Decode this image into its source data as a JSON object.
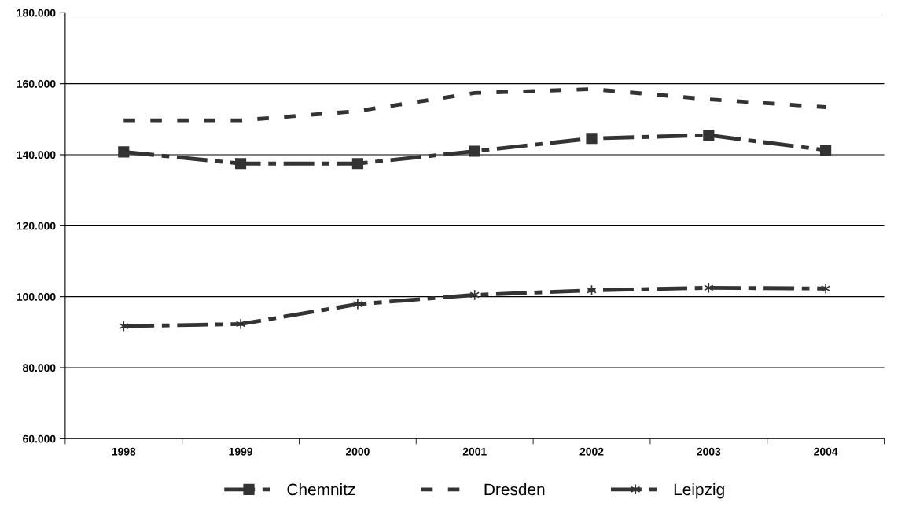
{
  "chart_data": {
    "type": "line",
    "categories": [
      "1998",
      "1999",
      "2000",
      "2001",
      "2002",
      "2003",
      "2004"
    ],
    "series": [
      {
        "name": "Chemnitz",
        "color": "#333333",
        "marker": "square",
        "line_style": "dashed",
        "values": [
          140800,
          137500,
          137500,
          141000,
          144600,
          145500,
          141300
        ]
      },
      {
        "name": "Dresden",
        "color": "#333333",
        "marker": "none",
        "line_style": "dotted",
        "values": [
          149700,
          149700,
          152300,
          157400,
          158500,
          155600,
          153400
        ]
      },
      {
        "name": "Leipzig",
        "color": "#333333",
        "marker": "cross",
        "line_style": "dashed",
        "values": [
          91700,
          92300,
          97900,
          100500,
          101800,
          102500,
          102300
        ]
      }
    ],
    "ylim": [
      60000,
      180000
    ],
    "yticks": [
      {
        "value": 60000,
        "label": "60.000"
      },
      {
        "value": 80000,
        "label": "80.000"
      },
      {
        "value": 100000,
        "label": "100.000"
      },
      {
        "value": 120000,
        "label": "120.000"
      },
      {
        "value": 140000,
        "label": "140.000"
      },
      {
        "value": 160000,
        "label": "160.000"
      },
      {
        "value": 180000,
        "label": "180.000"
      }
    ],
    "grid": "y",
    "legend": "bottom"
  }
}
